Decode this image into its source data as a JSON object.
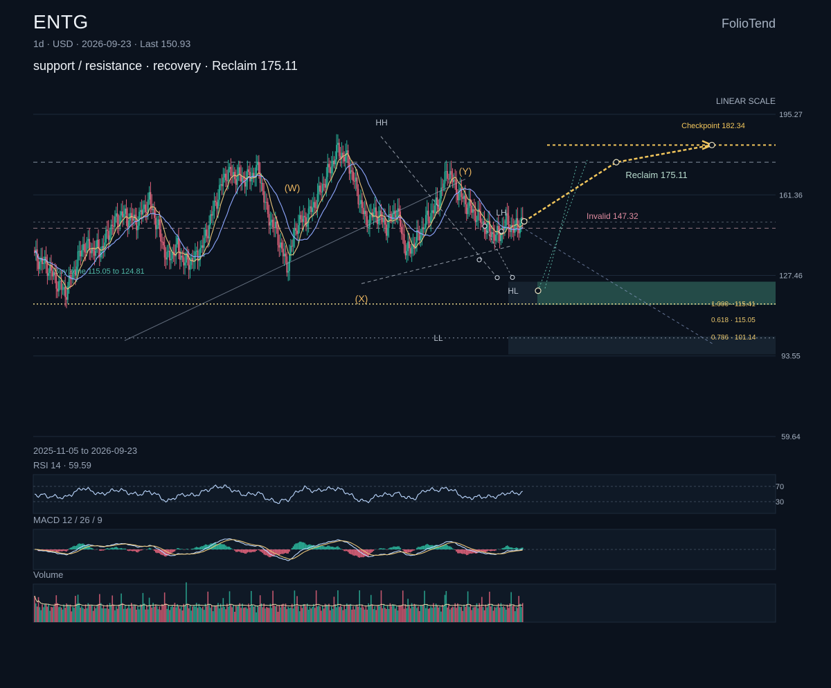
{
  "header": {
    "ticker": "ENTG",
    "meta": "1d · USD · 2026-09-23 · Last 150.93",
    "subtitle": "support / resistance · recovery · Reclaim 175.11",
    "brand": "FolioTend"
  },
  "colors": {
    "background": "#0b121d",
    "up": "#2bb39a",
    "down": "#e0627a",
    "ma_fast": "#e8c57a",
    "ma_slow": "#8fa8ff",
    "accent": "#f2c65c",
    "zone": "#2a5a52",
    "rsi": "#bcd8ff",
    "macd": "#bcd8ff",
    "signal": "#e8c57a"
  },
  "chart_data": {
    "type": "candlestick",
    "scale": "LINEAR SCALE",
    "date_range": "2025-11-05 to 2026-09-23",
    "ylim": [
      59.64,
      195.27
    ],
    "y_ticks": [
      "195.27",
      "161.36",
      "127.46",
      "93.55",
      "59.64"
    ],
    "last": 150.93,
    "pivots": [
      {
        "label": "(W)",
        "price": 158.5
      },
      {
        "label": "(X)",
        "price": 122.0
      },
      {
        "label": "(Y)",
        "price": 168.0
      },
      {
        "label": "HH",
        "price": 184.0
      },
      {
        "label": "LL",
        "price": 110.0
      },
      {
        "label": "LH",
        "price": 152.5
      },
      {
        "label": "HL",
        "price": 126.5
      }
    ],
    "levels": [
      {
        "label": "Checkpoint 182.34",
        "price": 182.34
      },
      {
        "label": "Reclaim 175.11",
        "price": 175.11
      },
      {
        "label": "Invalid 147.32",
        "price": 147.32
      }
    ],
    "buy_zone": {
      "label": "Buy zone 115.05 to 124.81",
      "low": 115.05,
      "high": 124.81
    },
    "fib_levels": [
      {
        "label": "1.000 · 115.41",
        "price": 115.41
      },
      {
        "label": "0.618 · 115.05",
        "price": 115.05
      },
      {
        "label": "0.786 · 101.14",
        "price": 101.14
      }
    ],
    "rsi": {
      "label": "RSI 14 · 59.59",
      "value": 59.59,
      "levels": [
        "70",
        "30"
      ]
    },
    "macd": {
      "label": "MACD 12 / 26 / 9"
    },
    "volume": {
      "label": "Volume"
    }
  }
}
